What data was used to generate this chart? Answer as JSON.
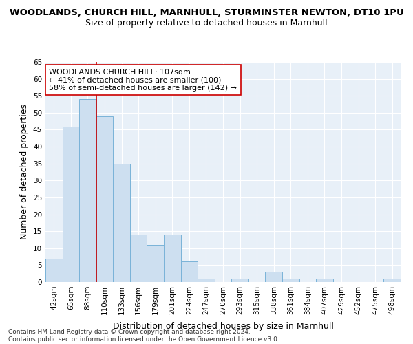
{
  "title_line1": "WOODLANDS, CHURCH HILL, MARNHULL, STURMINSTER NEWTON, DT10 1PU",
  "title_line2": "Size of property relative to detached houses in Marnhull",
  "xlabel": "Distribution of detached houses by size in Marnhull",
  "ylabel": "Number of detached properties",
  "footnote": "Contains HM Land Registry data © Crown copyright and database right 2024.\nContains public sector information licensed under the Open Government Licence v3.0.",
  "bar_labels": [
    "42sqm",
    "65sqm",
    "88sqm",
    "110sqm",
    "133sqm",
    "156sqm",
    "179sqm",
    "201sqm",
    "224sqm",
    "247sqm",
    "270sqm",
    "293sqm",
    "315sqm",
    "338sqm",
    "361sqm",
    "384sqm",
    "407sqm",
    "429sqm",
    "452sqm",
    "475sqm",
    "498sqm"
  ],
  "bar_values": [
    7,
    46,
    54,
    49,
    35,
    14,
    11,
    14,
    6,
    1,
    0,
    1,
    0,
    3,
    1,
    0,
    1,
    0,
    0,
    0,
    1
  ],
  "bar_color": "#cddff0",
  "bar_edge_color": "#7ab3d8",
  "vline_x": 2.5,
  "vline_color": "#cc0000",
  "annotation_text": "WOODLANDS CHURCH HILL: 107sqm\n← 41% of detached houses are smaller (100)\n58% of semi-detached houses are larger (142) →",
  "annotation_box_color": "#ffffff",
  "annotation_box_edge": "#cc0000",
  "ylim": [
    0,
    65
  ],
  "yticks": [
    0,
    5,
    10,
    15,
    20,
    25,
    30,
    35,
    40,
    45,
    50,
    55,
    60,
    65
  ],
  "bg_color": "#e8f0f8",
  "grid_color": "#ffffff",
  "title_fontsize": 9.5,
  "subtitle_fontsize": 9,
  "axis_label_fontsize": 9,
  "tick_fontsize": 7.5,
  "annotation_fontsize": 8
}
